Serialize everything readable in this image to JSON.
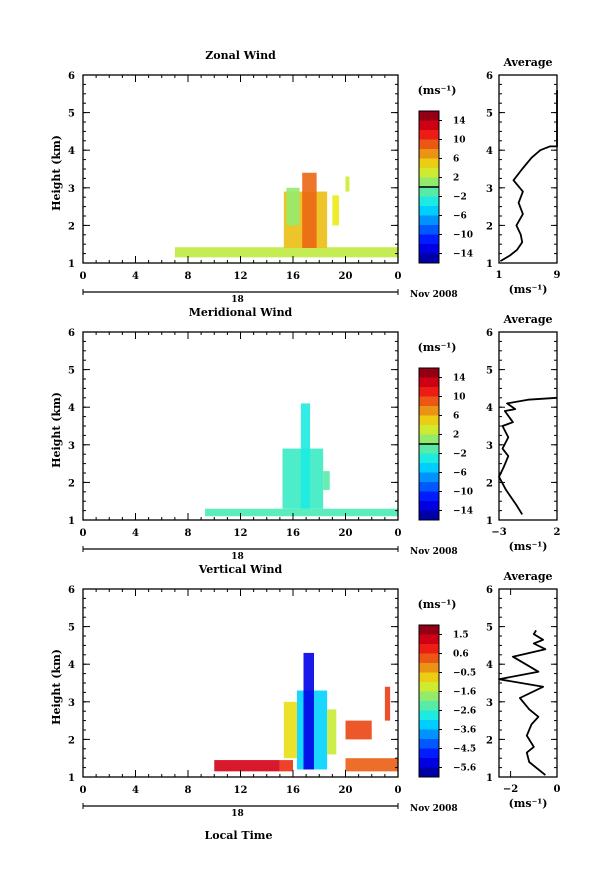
{
  "chart_data": [
    {
      "type": "heatmap",
      "title": "Zonal Wind",
      "ylabel": "Height (km)",
      "xlabel": "",
      "xticks": [
        "0",
        "4",
        "8",
        "12",
        "16",
        "20",
        "0"
      ],
      "x_range": [
        0,
        24
      ],
      "yticks": [
        "1",
        "2",
        "3",
        "4",
        "5",
        "6"
      ],
      "ylim": [
        1,
        6
      ],
      "date_bar_label": "18",
      "date_label": "Nov 2008",
      "colorbar": {
        "unit": "(ms⁻¹)",
        "ticks": [
          "14",
          "10",
          "6",
          "2",
          "−2",
          "−6",
          "−10",
          "−14"
        ],
        "range": [
          -16,
          16
        ],
        "zero_line": true
      },
      "data": [
        {
          "t0": 7.0,
          "t1": 24.0,
          "h0": 1.15,
          "h1": 1.42,
          "v": 2.5
        },
        {
          "t0": 15.3,
          "t1": 18.6,
          "h0": 1.4,
          "h1": 2.9,
          "v": 5.5
        },
        {
          "t0": 16.7,
          "t1": 17.8,
          "h0": 1.4,
          "h1": 3.4,
          "v": 8.5
        },
        {
          "t0": 15.5,
          "t1": 16.5,
          "h0": 2.0,
          "h1": 3.0,
          "v": 1.0
        },
        {
          "t0": 19.0,
          "t1": 19.5,
          "h0": 2.0,
          "h1": 2.8,
          "v": 4.0
        },
        {
          "t0": 20.0,
          "t1": 20.3,
          "h0": 2.9,
          "h1": 3.3,
          "v": 3.0
        }
      ],
      "average": {
        "title": "Average",
        "xlabel": "(ms⁻¹)",
        "xticks": [
          "1",
          "9"
        ],
        "xlim": [
          1,
          9
        ],
        "profile_x": [
          1.2,
          2.5,
          3.5,
          4.2,
          4.0,
          3.4,
          4.3,
          3.7,
          4.3,
          3.0,
          4.2,
          5.5,
          6.7,
          8.0,
          9.0,
          9.0
        ],
        "profile_h": [
          1.05,
          1.2,
          1.35,
          1.55,
          1.75,
          2.0,
          2.3,
          2.6,
          2.9,
          3.2,
          3.5,
          3.8,
          4.0,
          4.1,
          4.1,
          5.6
        ]
      }
    },
    {
      "type": "heatmap",
      "title": "Meridional Wind",
      "ylabel": "Height (km)",
      "xlabel": "",
      "xticks": [
        "0",
        "4",
        "8",
        "12",
        "16",
        "20",
        "0"
      ],
      "x_range": [
        0,
        24
      ],
      "yticks": [
        "1",
        "2",
        "3",
        "4",
        "5",
        "6"
      ],
      "ylim": [
        1,
        6
      ],
      "date_bar_label": "18",
      "date_label": "Nov 2008",
      "colorbar": {
        "unit": "(ms⁻¹)",
        "ticks": [
          "14",
          "10",
          "6",
          "2",
          "−2",
          "−6",
          "−10",
          "−14"
        ],
        "range": [
          -16,
          16
        ],
        "zero_line": true
      },
      "data": [
        {
          "t0": 9.3,
          "t1": 24.0,
          "h0": 1.1,
          "h1": 1.3,
          "v": -1.5
        },
        {
          "t0": 15.2,
          "t1": 18.3,
          "h0": 1.3,
          "h1": 2.9,
          "v": -2.0
        },
        {
          "t0": 16.6,
          "t1": 17.3,
          "h0": 1.3,
          "h1": 4.1,
          "v": -3.0
        },
        {
          "t0": 18.3,
          "t1": 18.8,
          "h0": 1.8,
          "h1": 2.3,
          "v": -1.0
        }
      ],
      "average": {
        "title": "Average",
        "xlabel": "(ms⁻¹)",
        "xticks": [
          "−3",
          "2"
        ],
        "xlim": [
          -3,
          2
        ],
        "profile_x": [
          -1.0,
          -1.5,
          -2.4,
          -3.0,
          -2.6,
          -2.2,
          -2.7,
          -2.2,
          -2.7,
          -1.8,
          -2.5,
          -1.6,
          -2.3,
          -0.5,
          2.0
        ],
        "profile_h": [
          1.15,
          1.4,
          1.8,
          2.15,
          2.4,
          2.7,
          2.9,
          3.2,
          3.5,
          3.6,
          3.9,
          3.95,
          4.1,
          4.2,
          4.25
        ]
      }
    },
    {
      "type": "heatmap",
      "title": "Vertical Wind",
      "ylabel": "Height (km)",
      "xlabel": "Local Time",
      "xticks": [
        "0",
        "4",
        "8",
        "12",
        "16",
        "20",
        "0"
      ],
      "x_range": [
        0,
        24
      ],
      "yticks": [
        "1",
        "2",
        "3",
        "4",
        "5",
        "6"
      ],
      "ylim": [
        1,
        6
      ],
      "date_bar_label": "18",
      "date_label": "Nov 2008",
      "colorbar": {
        "unit": "(ms⁻¹)",
        "ticks": [
          "1.5",
          "0.6",
          "−0.5",
          "−1.6",
          "−2.6",
          "−3.6",
          "−4.5",
          "−5.6"
        ],
        "range": [
          -6.0,
          2.0
        ],
        "zero_line": false
      },
      "data": [
        {
          "t0": 10.0,
          "t1": 15.0,
          "h0": 1.15,
          "h1": 1.45,
          "v": 1.2
        },
        {
          "t0": 15.0,
          "t1": 16.0,
          "h0": 1.15,
          "h1": 1.45,
          "v": 0.6
        },
        {
          "t0": 20.0,
          "t1": 24.0,
          "h0": 1.15,
          "h1": 1.5,
          "v": 0.2
        },
        {
          "t0": 15.3,
          "t1": 16.3,
          "h0": 1.5,
          "h1": 3.0,
          "v": -0.9
        },
        {
          "t0": 16.3,
          "t1": 18.6,
          "h0": 1.2,
          "h1": 3.3,
          "v": -3.2
        },
        {
          "t0": 16.8,
          "t1": 17.6,
          "h0": 1.2,
          "h1": 4.3,
          "v": -5.2
        },
        {
          "t0": 18.6,
          "t1": 19.3,
          "h0": 1.6,
          "h1": 2.8,
          "v": -1.3
        },
        {
          "t0": 20.0,
          "t1": 22.0,
          "h0": 2.0,
          "h1": 2.5,
          "v": 0.4
        },
        {
          "t0": 23.0,
          "t1": 23.4,
          "h0": 2.5,
          "h1": 3.4,
          "v": 0.5
        }
      ],
      "average": {
        "title": "Average",
        "xlabel": "(ms⁻¹)",
        "xticks": [
          "−2",
          "0"
        ],
        "xlim": [
          -2.5,
          0
        ],
        "profile_x": [
          -0.5,
          -1.2,
          -1.3,
          -1.0,
          -1.3,
          -1.1,
          -0.8,
          -1.2,
          -1.6,
          -0.6,
          -2.5,
          -0.8,
          -1.9,
          -0.5,
          -1.0,
          -0.6,
          -1.0,
          -0.9
        ],
        "profile_h": [
          1.05,
          1.4,
          1.65,
          1.8,
          2.1,
          2.4,
          2.6,
          2.8,
          3.1,
          3.4,
          3.6,
          3.8,
          4.2,
          4.4,
          4.55,
          4.65,
          4.8,
          4.9
        ]
      }
    }
  ]
}
